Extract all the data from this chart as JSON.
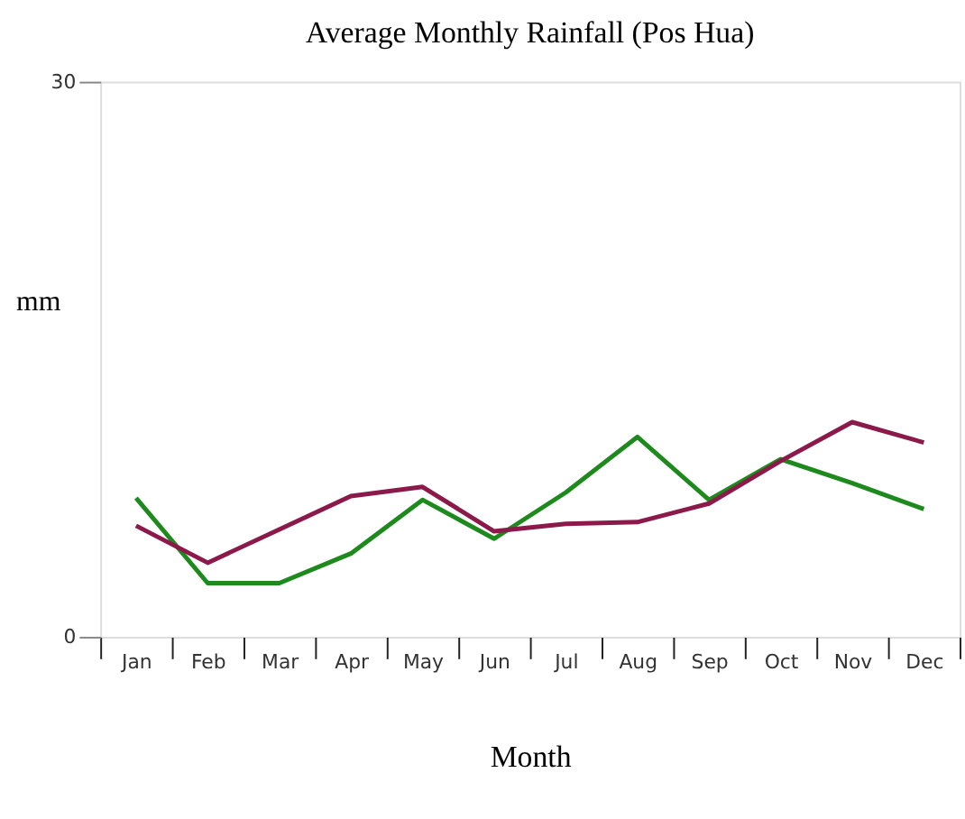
{
  "chart_data": {
    "type": "line",
    "title": "Average Monthly Rainfall (Pos Hua)",
    "xlabel": "Month",
    "ylabel": "mm",
    "categories": [
      "Jan",
      "Feb",
      "Mar",
      "Apr",
      "May",
      "Jun",
      "Jul",
      "Aug",
      "Sep",
      "Oct",
      "Nov",
      "Dec"
    ],
    "series": [
      {
        "color": "#1e8a1e",
        "values": [
          7.5,
          2.9,
          2.9,
          4.5,
          7.4,
          5.3,
          7.8,
          10.8,
          7.4,
          9.6,
          8.3,
          6.9
        ]
      },
      {
        "color": "#8b1a4a",
        "values": [
          6.0,
          4.0,
          5.8,
          7.6,
          8.1,
          5.7,
          6.1,
          6.2,
          7.2,
          9.5,
          11.6,
          10.5
        ]
      }
    ],
    "ylim": [
      0,
      30
    ],
    "yticks": [
      0,
      30
    ],
    "grid": false,
    "legend": false,
    "marker": "none",
    "line_style": "solid"
  }
}
